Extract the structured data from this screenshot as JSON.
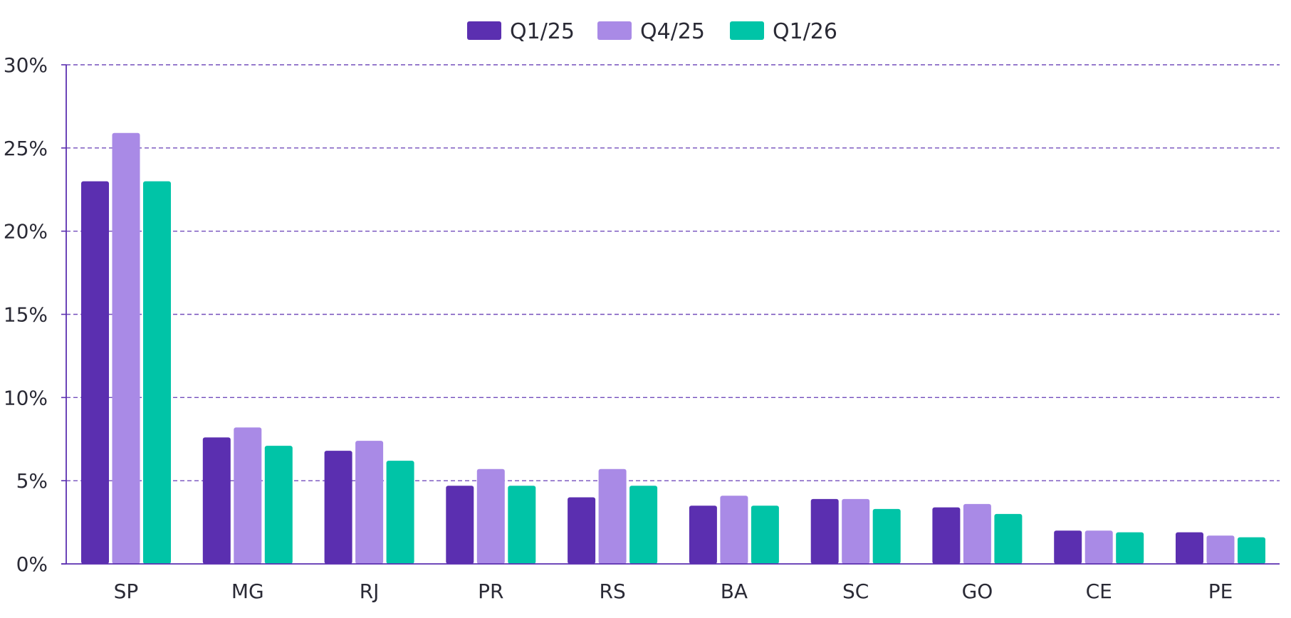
{
  "chart_data": {
    "type": "bar",
    "title": "",
    "xlabel": "",
    "ylabel": "",
    "ylim": [
      0,
      30
    ],
    "yticks": [
      0,
      5,
      10,
      15,
      20,
      25,
      30
    ],
    "ytick_labels": [
      "0%",
      "5%",
      "10%",
      "15%",
      "20%",
      "25%",
      "30%"
    ],
    "grid": true,
    "grid_style": "dashed",
    "legend_position": "top-center",
    "categories": [
      "SP",
      "MG",
      "RJ",
      "PR",
      "RS",
      "BA",
      "SC",
      "GO",
      "CE",
      "PE"
    ],
    "series": [
      {
        "name": "Q1/25",
        "color": "#5b2fb0",
        "values": [
          23.0,
          7.6,
          6.8,
          4.7,
          4.0,
          3.5,
          3.9,
          3.4,
          2.0,
          1.9
        ]
      },
      {
        "name": "Q4/25",
        "color": "#a98ae6",
        "values": [
          25.9,
          8.2,
          7.4,
          5.7,
          5.7,
          4.1,
          3.9,
          3.6,
          2.0,
          1.7
        ]
      },
      {
        "name": "Q1/26",
        "color": "#00c4a7",
        "values": [
          23.0,
          7.1,
          6.2,
          4.7,
          4.7,
          3.5,
          3.3,
          3.0,
          1.9,
          1.6
        ]
      }
    ],
    "colors": {
      "axis": "#5b2fb0",
      "grid": "#5b2fb0",
      "text": "#2a2a35"
    }
  }
}
